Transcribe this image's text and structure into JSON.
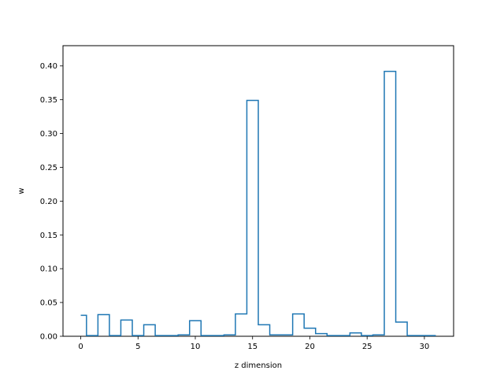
{
  "chart_data": {
    "type": "step",
    "title": "",
    "xlabel": "z dimension",
    "ylabel": "w",
    "xlim": [
      -1.55,
      32.55
    ],
    "ylim": [
      0,
      0.43
    ],
    "xticks": [
      0,
      5,
      10,
      15,
      20,
      25,
      30
    ],
    "yticks": [
      0.0,
      0.05,
      0.1,
      0.15,
      0.2,
      0.25,
      0.3,
      0.35,
      0.4
    ],
    "ytick_labels": [
      "0.00",
      "0.05",
      "0.10",
      "0.15",
      "0.20",
      "0.25",
      "0.30",
      "0.35",
      "0.40"
    ],
    "grid": false,
    "line_color": "#1f77b4",
    "x": [
      0,
      1,
      2,
      3,
      4,
      5,
      6,
      7,
      8,
      9,
      10,
      11,
      12,
      13,
      14,
      15,
      16,
      17,
      18,
      19,
      20,
      21,
      22,
      23,
      24,
      25,
      26,
      27,
      28,
      29,
      30,
      31
    ],
    "values": [
      0.031,
      0.001,
      0.032,
      0.001,
      0.024,
      0.001,
      0.017,
      0.001,
      0.001,
      0.002,
      0.023,
      0.001,
      0.001,
      0.002,
      0.033,
      0.349,
      0.017,
      0.002,
      0.002,
      0.033,
      0.012,
      0.004,
      0.001,
      0.001,
      0.005,
      0.001,
      0.002,
      0.392,
      0.021,
      0.001,
      0.001,
      0.001
    ]
  }
}
